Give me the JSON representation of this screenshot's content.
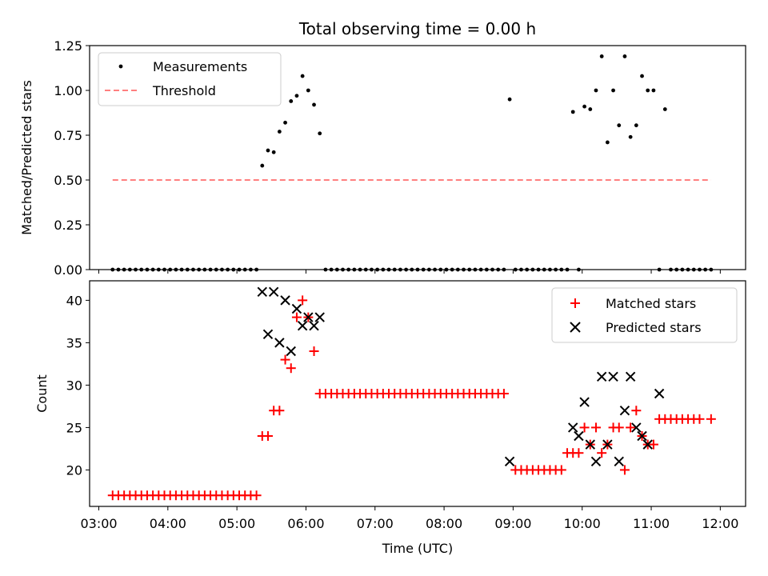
{
  "figure": {
    "title": "Total observing time = 0.00 h"
  },
  "chart_data": [
    {
      "type": "scatter",
      "ylabel": "Matched/Predicted stars",
      "ylim": [
        0,
        1.25
      ],
      "xlim": [
        "02:52",
        "12:22"
      ],
      "yticks": [
        "0.00",
        "0.25",
        "0.50",
        "0.75",
        "1.00",
        "1.25"
      ],
      "grid": false,
      "legend_position": "top-left",
      "series": [
        {
          "name": "Measurements",
          "marker": "dot",
          "color": "#000000",
          "points": [
            [
              "03:12",
              0
            ],
            [
              "03:17",
              0
            ],
            [
              "03:22",
              0
            ],
            [
              "03:27",
              0
            ],
            [
              "03:32",
              0
            ],
            [
              "03:37",
              0
            ],
            [
              "03:42",
              0
            ],
            [
              "03:47",
              0
            ],
            [
              "03:52",
              0
            ],
            [
              "03:57",
              0
            ],
            [
              "04:02",
              0
            ],
            [
              "04:07",
              0
            ],
            [
              "04:12",
              0
            ],
            [
              "04:17",
              0
            ],
            [
              "04:22",
              0
            ],
            [
              "04:27",
              0
            ],
            [
              "04:32",
              0
            ],
            [
              "04:37",
              0
            ],
            [
              "04:42",
              0
            ],
            [
              "04:47",
              0
            ],
            [
              "04:52",
              0
            ],
            [
              "04:57",
              0
            ],
            [
              "05:02",
              0
            ],
            [
              "05:07",
              0
            ],
            [
              "05:12",
              0
            ],
            [
              "05:17",
              0
            ],
            [
              "05:22",
              0.58
            ],
            [
              "05:27",
              0.665
            ],
            [
              "05:32",
              0.655
            ],
            [
              "05:37",
              0.77
            ],
            [
              "05:42",
              0.82
            ],
            [
              "05:47",
              0.94
            ],
            [
              "05:52",
              0.97
            ],
            [
              "05:57",
              1.08
            ],
            [
              "06:02",
              1.0
            ],
            [
              "06:07",
              0.92
            ],
            [
              "06:12",
              0.76
            ],
            [
              "06:17",
              0
            ],
            [
              "06:22",
              0
            ],
            [
              "06:27",
              0
            ],
            [
              "06:32",
              0
            ],
            [
              "06:37",
              0
            ],
            [
              "06:42",
              0
            ],
            [
              "06:47",
              0
            ],
            [
              "06:52",
              0
            ],
            [
              "06:57",
              0
            ],
            [
              "07:02",
              0
            ],
            [
              "07:07",
              0
            ],
            [
              "07:12",
              0
            ],
            [
              "07:17",
              0
            ],
            [
              "07:22",
              0
            ],
            [
              "07:27",
              0
            ],
            [
              "07:32",
              0
            ],
            [
              "07:37",
              0
            ],
            [
              "07:42",
              0
            ],
            [
              "07:47",
              0
            ],
            [
              "07:52",
              0
            ],
            [
              "07:57",
              0
            ],
            [
              "08:02",
              0
            ],
            [
              "08:07",
              0
            ],
            [
              "08:12",
              0
            ],
            [
              "08:17",
              0
            ],
            [
              "08:22",
              0
            ],
            [
              "08:27",
              0
            ],
            [
              "08:32",
              0
            ],
            [
              "08:37",
              0
            ],
            [
              "08:42",
              0
            ],
            [
              "08:47",
              0
            ],
            [
              "08:52",
              0
            ],
            [
              "08:57",
              0.95
            ],
            [
              "09:02",
              0
            ],
            [
              "09:07",
              0
            ],
            [
              "09:12",
              0
            ],
            [
              "09:17",
              0
            ],
            [
              "09:22",
              0
            ],
            [
              "09:27",
              0
            ],
            [
              "09:32",
              0
            ],
            [
              "09:37",
              0
            ],
            [
              "09:42",
              0
            ],
            [
              "09:47",
              0
            ],
            [
              "09:52",
              0.88
            ],
            [
              "09:57",
              0
            ],
            [
              "10:02",
              0.91
            ],
            [
              "10:07",
              0.895
            ],
            [
              "10:12",
              1.0
            ],
            [
              "10:17",
              1.19
            ],
            [
              "10:22",
              0.71
            ],
            [
              "10:27",
              1.0
            ],
            [
              "10:32",
              0.805
            ],
            [
              "10:37",
              1.19
            ],
            [
              "10:42",
              0.74
            ],
            [
              "10:47",
              0.805
            ],
            [
              "10:52",
              1.08
            ],
            [
              "10:57",
              1.0
            ],
            [
              "11:02",
              1.0
            ],
            [
              "11:07",
              0
            ],
            [
              "11:12",
              0.895
            ],
            [
              "11:17",
              0
            ],
            [
              "11:22",
              0
            ],
            [
              "11:27",
              0
            ],
            [
              "11:32",
              0
            ],
            [
              "11:37",
              0
            ],
            [
              "11:42",
              0
            ],
            [
              "11:47",
              0
            ],
            [
              "11:52",
              0
            ]
          ]
        },
        {
          "name": "Threshold",
          "marker": "dashed-line",
          "color": "#ff7f7f",
          "points": [
            [
              "03:12",
              0.5
            ],
            [
              "11:52",
              0.5
            ]
          ]
        }
      ]
    },
    {
      "type": "scatter",
      "xlabel": "Time (UTC)",
      "ylabel": "Count",
      "ylim": [
        15.7,
        42.3
      ],
      "xlim": [
        "02:52",
        "12:22"
      ],
      "xticks": [
        "03:00",
        "04:00",
        "05:00",
        "06:00",
        "07:00",
        "08:00",
        "09:00",
        "10:00",
        "11:00",
        "12:00"
      ],
      "yticks": [
        "20",
        "25",
        "30",
        "35",
        "40"
      ],
      "grid": false,
      "legend_position": "top-right",
      "series": [
        {
          "name": "Matched stars",
          "marker": "plus",
          "color": "#ff0000",
          "points": [
            [
              "03:12",
              17
            ],
            [
              "03:17",
              17
            ],
            [
              "03:22",
              17
            ],
            [
              "03:27",
              17
            ],
            [
              "03:32",
              17
            ],
            [
              "03:37",
              17
            ],
            [
              "03:42",
              17
            ],
            [
              "03:47",
              17
            ],
            [
              "03:52",
              17
            ],
            [
              "03:57",
              17
            ],
            [
              "04:02",
              17
            ],
            [
              "04:07",
              17
            ],
            [
              "04:12",
              17
            ],
            [
              "04:17",
              17
            ],
            [
              "04:22",
              17
            ],
            [
              "04:27",
              17
            ],
            [
              "04:32",
              17
            ],
            [
              "04:37",
              17
            ],
            [
              "04:42",
              17
            ],
            [
              "04:47",
              17
            ],
            [
              "04:52",
              17
            ],
            [
              "04:57",
              17
            ],
            [
              "05:02",
              17
            ],
            [
              "05:07",
              17
            ],
            [
              "05:12",
              17
            ],
            [
              "05:17",
              17
            ],
            [
              "05:22",
              24
            ],
            [
              "05:27",
              24
            ],
            [
              "05:32",
              27
            ],
            [
              "05:37",
              27
            ],
            [
              "05:42",
              33
            ],
            [
              "05:47",
              32
            ],
            [
              "05:52",
              38
            ],
            [
              "05:57",
              40
            ],
            [
              "06:02",
              38
            ],
            [
              "06:07",
              34
            ],
            [
              "06:12",
              29
            ],
            [
              "06:17",
              29
            ],
            [
              "06:22",
              29
            ],
            [
              "06:27",
              29
            ],
            [
              "06:32",
              29
            ],
            [
              "06:37",
              29
            ],
            [
              "06:42",
              29
            ],
            [
              "06:47",
              29
            ],
            [
              "06:52",
              29
            ],
            [
              "06:57",
              29
            ],
            [
              "07:02",
              29
            ],
            [
              "07:07",
              29
            ],
            [
              "07:12",
              29
            ],
            [
              "07:17",
              29
            ],
            [
              "07:22",
              29
            ],
            [
              "07:27",
              29
            ],
            [
              "07:32",
              29
            ],
            [
              "07:37",
              29
            ],
            [
              "07:42",
              29
            ],
            [
              "07:47",
              29
            ],
            [
              "07:52",
              29
            ],
            [
              "07:57",
              29
            ],
            [
              "08:02",
              29
            ],
            [
              "08:07",
              29
            ],
            [
              "08:12",
              29
            ],
            [
              "08:17",
              29
            ],
            [
              "08:22",
              29
            ],
            [
              "08:27",
              29
            ],
            [
              "08:32",
              29
            ],
            [
              "08:37",
              29
            ],
            [
              "08:42",
              29
            ],
            [
              "08:47",
              29
            ],
            [
              "08:52",
              29
            ],
            [
              "09:02",
              20
            ],
            [
              "09:07",
              20
            ],
            [
              "09:12",
              20
            ],
            [
              "09:17",
              20
            ],
            [
              "09:22",
              20
            ],
            [
              "09:27",
              20
            ],
            [
              "09:32",
              20
            ],
            [
              "09:37",
              20
            ],
            [
              "09:42",
              20
            ],
            [
              "09:47",
              22
            ],
            [
              "09:52",
              22
            ],
            [
              "09:57",
              22
            ],
            [
              "10:02",
              25
            ],
            [
              "10:07",
              23
            ],
            [
              "10:12",
              25
            ],
            [
              "10:17",
              22
            ],
            [
              "10:22",
              23
            ],
            [
              "10:27",
              25
            ],
            [
              "10:32",
              25
            ],
            [
              "10:37",
              20
            ],
            [
              "10:42",
              25
            ],
            [
              "10:47",
              27
            ],
            [
              "10:52",
              24
            ],
            [
              "10:57",
              23
            ],
            [
              "11:02",
              23
            ],
            [
              "11:07",
              26
            ],
            [
              "11:12",
              26
            ],
            [
              "11:17",
              26
            ],
            [
              "11:22",
              26
            ],
            [
              "11:27",
              26
            ],
            [
              "11:32",
              26
            ],
            [
              "11:37",
              26
            ],
            [
              "11:42",
              26
            ],
            [
              "11:52",
              26
            ]
          ]
        },
        {
          "name": "Predicted stars",
          "marker": "x",
          "color": "#000000",
          "points": [
            [
              "05:22",
              41
            ],
            [
              "05:27",
              36
            ],
            [
              "05:32",
              41
            ],
            [
              "05:37",
              35
            ],
            [
              "05:42",
              40
            ],
            [
              "05:47",
              34
            ],
            [
              "05:52",
              39
            ],
            [
              "05:57",
              37
            ],
            [
              "06:02",
              38
            ],
            [
              "06:07",
              37
            ],
            [
              "06:12",
              38
            ],
            [
              "08:57",
              21
            ],
            [
              "09:52",
              25
            ],
            [
              "09:57",
              24
            ],
            [
              "10:02",
              28
            ],
            [
              "10:07",
              23
            ],
            [
              "10:12",
              21
            ],
            [
              "10:17",
              31
            ],
            [
              "10:22",
              23
            ],
            [
              "10:27",
              31
            ],
            [
              "10:32",
              21
            ],
            [
              "10:37",
              27
            ],
            [
              "10:42",
              31
            ],
            [
              "10:47",
              25
            ],
            [
              "10:52",
              24
            ],
            [
              "10:57",
              23
            ],
            [
              "11:07",
              29
            ]
          ]
        }
      ]
    }
  ]
}
